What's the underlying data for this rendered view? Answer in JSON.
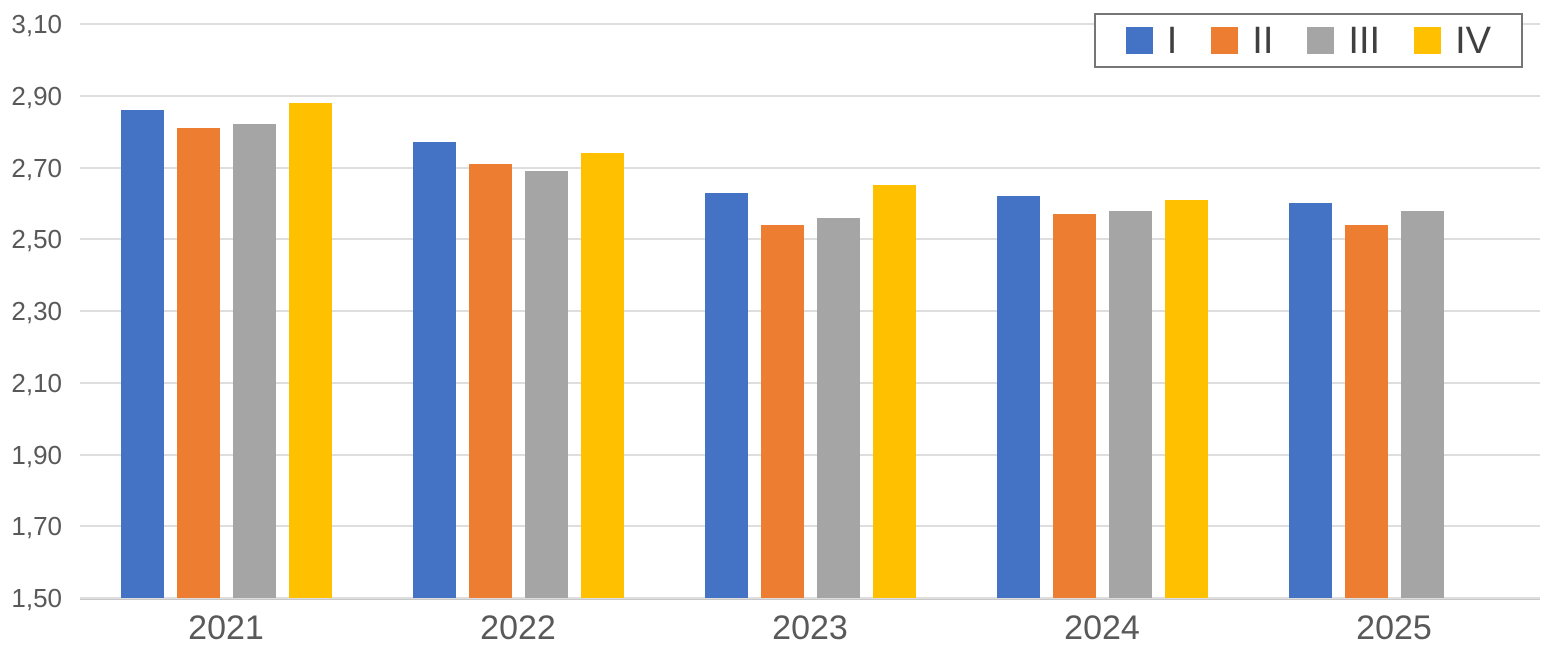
{
  "chart_data": {
    "type": "bar",
    "title": "",
    "xlabel": "",
    "ylabel": "",
    "categories": [
      "2021",
      "2022",
      "2023",
      "2024",
      "2025"
    ],
    "series": [
      {
        "name": "I",
        "color": "#4472C4",
        "values": [
          2.86,
          2.77,
          2.63,
          2.62,
          2.6
        ]
      },
      {
        "name": "II",
        "color": "#ED7D31",
        "values": [
          2.81,
          2.71,
          2.54,
          2.57,
          2.54
        ]
      },
      {
        "name": "III",
        "color": "#A5A5A5",
        "values": [
          2.82,
          2.69,
          2.56,
          2.58,
          2.58
        ]
      },
      {
        "name": "IV",
        "color": "#FFC000",
        "values": [
          2.88,
          2.74,
          2.65,
          2.61,
          null
        ]
      }
    ],
    "ylim": [
      1.5,
      3.1
    ],
    "y_tick_step": 0.2,
    "y_tick_labels": [
      "3,10",
      "2,90",
      "2,70",
      "2,50",
      "2,30",
      "2,10",
      "1,90",
      "1,70",
      "1,50"
    ],
    "decimal_separator": ",",
    "grid": true,
    "legend_position": "top-right",
    "legend_labels": [
      "I",
      "II",
      "III",
      "IV"
    ],
    "gridline_color": "#DEDEDE",
    "axis_label_color": "#595959",
    "legend_text_color": "#404040",
    "legend_border_color": "#767676"
  }
}
